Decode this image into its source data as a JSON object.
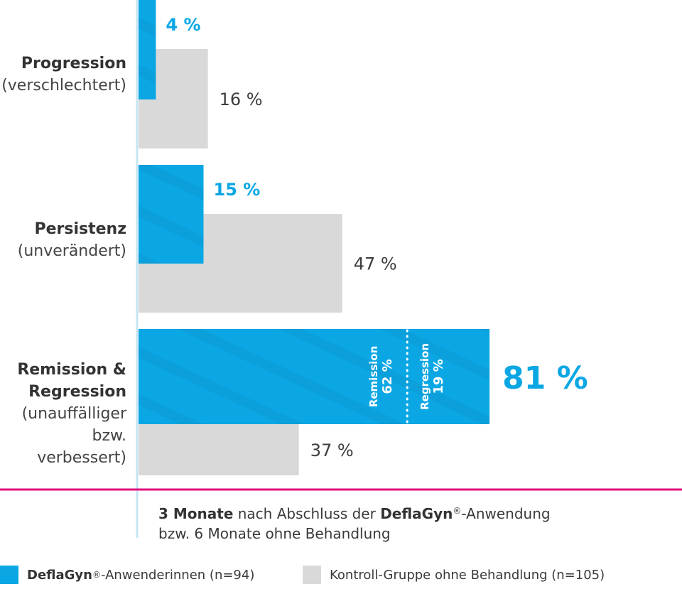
{
  "chart_data": {
    "type": "bar",
    "orientation": "horizontal",
    "xlim": [
      0,
      100
    ],
    "categories": [
      {
        "name": "Progression",
        "sub": [
          "(verschlechtert)"
        ]
      },
      {
        "name": "Persistenz",
        "sub": [
          "(unverändert)"
        ]
      },
      {
        "name_lines": [
          "Remission &",
          "Regression"
        ],
        "sub": [
          "(unauffälliger",
          "bzw. verbessert)"
        ]
      }
    ],
    "series": [
      {
        "name": "DeflaGyn®-Anwenderinnen (n=94)",
        "color": "#0aa7e4",
        "values": [
          4,
          15,
          81
        ],
        "labels": [
          "4 %",
          "15 %",
          "81 %"
        ]
      },
      {
        "name": "Kontroll-Gruppe ohne Behandlung (n=105)",
        "color": "#d9d9d9",
        "values": [
          16,
          47,
          37
        ],
        "labels": [
          "16 %",
          "47 %",
          "37 %"
        ]
      }
    ],
    "breakdown": {
      "category_index": 2,
      "parts": [
        {
          "label": "Remission",
          "value": 62,
          "value_label": "62 %"
        },
        {
          "label": "Regression",
          "value": 19,
          "value_label": "19 %"
        }
      ]
    }
  },
  "caption": {
    "part1": "3 Monate",
    "part2": " nach Abschluss der ",
    "brand": "DeflaGyn",
    "reg": "®",
    "part3": "-Anwendung",
    "line2": "bzw. 6 Monate ohne Behandlung"
  },
  "legend": {
    "item1": {
      "brand": "DeflaGyn",
      "reg": "®",
      "rest": "-Anwenderinnen (n=94)",
      "color": "#0aa7e4"
    },
    "item2": {
      "text": "Kontroll-Gruppe ohne Behandlung (n=105)",
      "color": "#d9d9d9"
    }
  },
  "colors": {
    "axis": "#c5e6f2",
    "divider": "#e0117f",
    "accent": "#0aa7e4",
    "grey": "#d9d9d9"
  }
}
